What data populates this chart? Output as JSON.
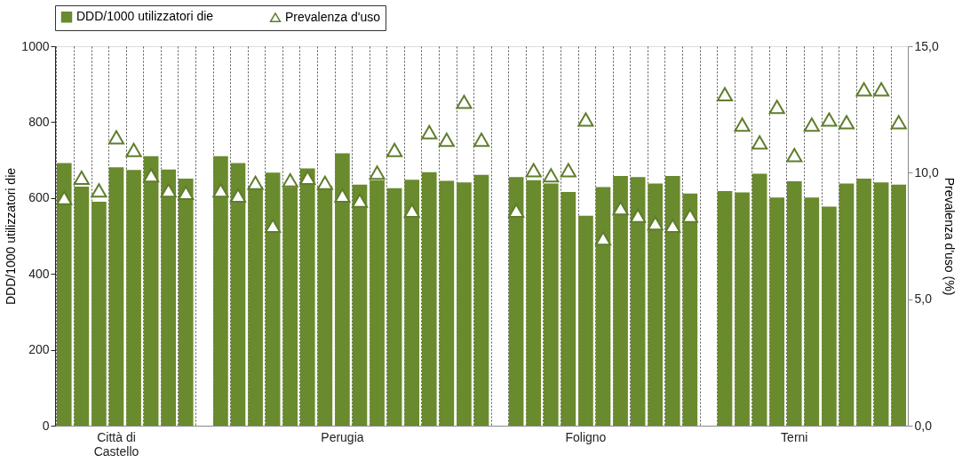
{
  "chart_data": {
    "type": "bar",
    "categories": [
      null,
      null,
      null,
      "Città di Castello",
      null,
      null,
      null,
      null,
      null,
      null,
      null,
      null,
      null,
      null,
      null,
      null,
      "Perugia",
      null,
      null,
      null,
      null,
      null,
      null,
      null,
      null,
      null,
      null,
      null,
      null,
      null,
      "Foligno",
      null,
      null,
      null,
      null,
      null,
      null,
      null,
      null,
      null,
      null,
      null,
      "Terni",
      null,
      null,
      null,
      null,
      null,
      null
    ],
    "series": [
      {
        "name": "DDD/1000 utilizzatori die",
        "color": "#6a8a2e",
        "values": [
          692,
          630,
          590,
          681,
          674,
          710,
          675,
          651,
          null,
          710,
          692,
          630,
          667,
          628,
          678,
          632,
          718,
          635,
          647,
          626,
          648,
          668,
          645,
          641,
          661,
          null,
          655,
          647,
          638,
          616,
          553,
          629,
          658,
          655,
          638,
          658,
          612,
          null,
          618,
          615,
          664,
          601,
          644,
          601,
          577,
          638,
          651,
          641,
          635
        ]
      },
      {
        "name": "Prevalenza d'uso",
        "type": "scatter",
        "axis": "y2",
        "marker": "triangle",
        "color": "#5f7d2c",
        "values": [
          9.0,
          9.8,
          9.3,
          11.4,
          10.9,
          9.9,
          9.3,
          9.2,
          null,
          9.3,
          9.1,
          9.6,
          7.9,
          9.7,
          9.8,
          9.6,
          9.1,
          8.9,
          10.0,
          10.9,
          8.5,
          11.6,
          11.3,
          12.8,
          11.3,
          null,
          8.5,
          10.1,
          9.9,
          10.1,
          12.1,
          7.4,
          8.6,
          8.3,
          8.0,
          7.9,
          8.3,
          null,
          13.1,
          11.9,
          11.2,
          12.6,
          10.7,
          11.9,
          12.1,
          12.0,
          13.3,
          13.3,
          12.0
        ]
      }
    ],
    "ylabel": "DDD/1000 utilizzatori die",
    "y2label": "Prevalenza d'uso (%)",
    "ylim": [
      0,
      1000
    ],
    "yticks": [
      0,
      200,
      400,
      600,
      800,
      1000
    ],
    "y2lim": [
      0,
      15
    ],
    "y2ticks": [
      {
        "value": 0,
        "label": "0,0"
      },
      {
        "value": 5,
        "label": "5,0"
      },
      {
        "value": 10,
        "label": "10,0"
      },
      {
        "value": 15,
        "label": "15,0"
      }
    ],
    "grid": "x",
    "legend": "top"
  }
}
